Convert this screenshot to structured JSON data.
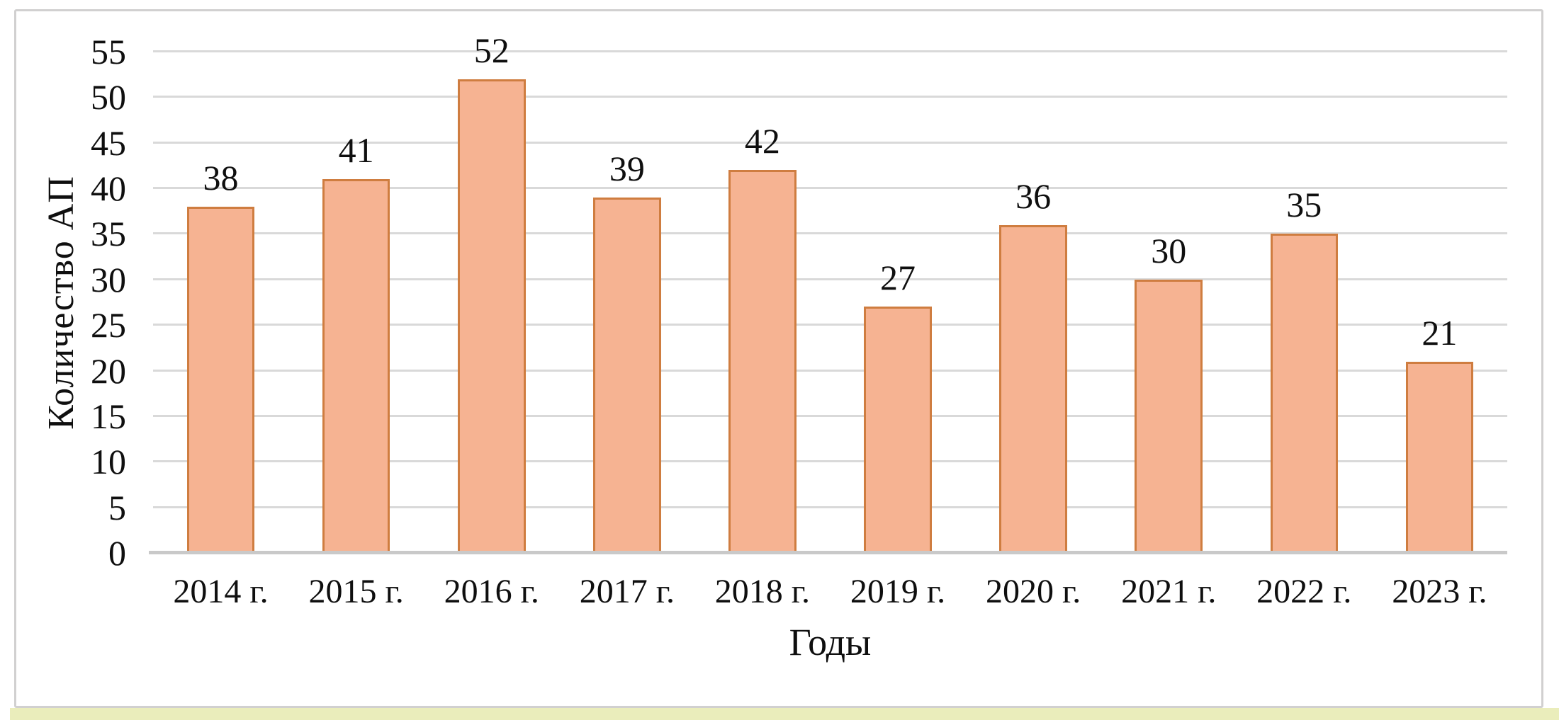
{
  "chart_data": {
    "type": "bar",
    "title": "",
    "categories": [
      "2014 г.",
      "2015 г.",
      "2016 г.",
      "2017 г.",
      "2018 г.",
      "2019 г.",
      "2020 г.",
      "2021 г.",
      "2022 г.",
      "2023 г."
    ],
    "values": [
      38,
      41,
      52,
      39,
      42,
      27,
      36,
      30,
      35,
      21
    ],
    "xlabel": "Годы",
    "ylabel": "Количество АП",
    "ylim": [
      0,
      55
    ],
    "ytick_step": 5,
    "yticks": [
      0,
      5,
      10,
      15,
      20,
      25,
      30,
      35,
      40,
      45,
      50,
      55
    ],
    "grid": "horizontal",
    "legend": "none",
    "data_labels": true,
    "style": {
      "bar_fill": "#f6b392",
      "bar_border": "#cf7d40",
      "gridline_color": "#d9d9d9",
      "axis_line_color": "#c9c9c9",
      "frame_border_color": "#d1d0d0",
      "bottom_strip_color": "#eaedbb",
      "text_color": "#0f0f0f",
      "background": "#ffffff"
    }
  }
}
